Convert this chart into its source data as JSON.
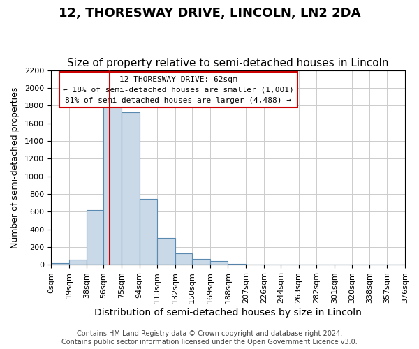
{
  "title": "12, THORESWAY DRIVE, LINCOLN, LN2 2DA",
  "subtitle": "Size of property relative to semi-detached houses in Lincoln",
  "xlabel": "Distribution of semi-detached houses by size in Lincoln",
  "ylabel": "Number of semi-detached properties",
  "bin_edges": [
    0,
    19,
    38,
    56,
    75,
    94,
    113,
    132,
    150,
    169,
    188,
    207,
    226,
    244,
    263,
    282,
    301,
    320,
    338,
    357,
    376
  ],
  "bin_labels": [
    "0sqm",
    "19sqm",
    "38sqm",
    "56sqm",
    "75sqm",
    "94sqm",
    "113sqm",
    "132sqm",
    "150sqm",
    "169sqm",
    "188sqm",
    "207sqm",
    "226sqm",
    "244sqm",
    "263sqm",
    "282sqm",
    "301sqm",
    "320sqm",
    "338sqm",
    "357sqm",
    "376sqm"
  ],
  "bar_values": [
    20,
    60,
    620,
    1840,
    1720,
    740,
    300,
    130,
    65,
    40,
    10,
    0,
    0,
    0,
    0,
    0,
    0,
    0,
    0,
    0
  ],
  "bar_color": "#c9d9e8",
  "bar_edge_color": "#5a8ab0",
  "property_sqm": 62,
  "property_line_color": "#cc0000",
  "ylim": [
    0,
    2200
  ],
  "yticks": [
    0,
    200,
    400,
    600,
    800,
    1000,
    1200,
    1400,
    1600,
    1800,
    2000,
    2200
  ],
  "annotation_title": "12 THORESWAY DRIVE: 62sqm",
  "annotation_line1": "← 18% of semi-detached houses are smaller (1,001)",
  "annotation_line2": "81% of semi-detached houses are larger (4,488) →",
  "annotation_box_color": "#ffffff",
  "annotation_box_edge_color": "#cc0000",
  "footer1": "Contains HM Land Registry data © Crown copyright and database right 2024.",
  "footer2": "Contains public sector information licensed under the Open Government Licence v3.0.",
  "title_fontsize": 13,
  "subtitle_fontsize": 11,
  "xlabel_fontsize": 10,
  "ylabel_fontsize": 9,
  "tick_fontsize": 8,
  "footer_fontsize": 7
}
